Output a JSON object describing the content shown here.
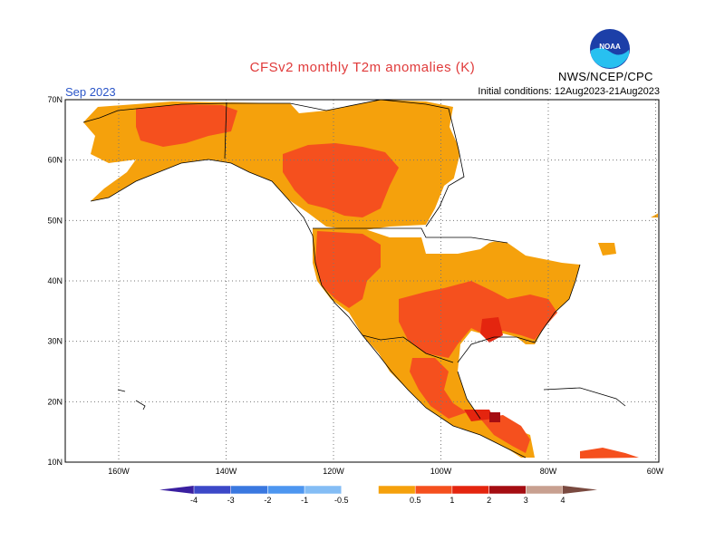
{
  "header": {
    "title": "CFSv2 monthly T2m anomalies (K)",
    "month": "Sep 2023",
    "initial_conditions": "Initial conditions: 12Aug2023-21Aug2023",
    "agency": "NWS/NCEP/CPC",
    "logo_text": "NOAA"
  },
  "map": {
    "lat_labels": [
      "70N",
      "60N",
      "50N",
      "40N",
      "30N",
      "20N",
      "10N"
    ],
    "lon_labels": [
      "160W",
      "140W",
      "120W",
      "100W",
      "80W",
      "60W"
    ],
    "colors": {
      "a05": "#f5a10c",
      "a1": "#f5501e",
      "a2": "#e4250f",
      "a3": "#a50d12",
      "a4": "#c8a090",
      "coast": "#000000"
    }
  },
  "colorbar": {
    "labels": [
      "-4",
      "-3",
      "-2",
      "-1",
      "-0.5",
      "0.5",
      "1",
      "2",
      "3",
      "4"
    ],
    "colors": [
      "#3a1fa0",
      "#3c48c8",
      "#3a78e0",
      "#4d96f0",
      "#84bdf5",
      "#ffffff",
      "#f5a10c",
      "#f5501e",
      "#e4250f",
      "#a50d12",
      "#c8a090",
      "#7a4a40"
    ]
  }
}
